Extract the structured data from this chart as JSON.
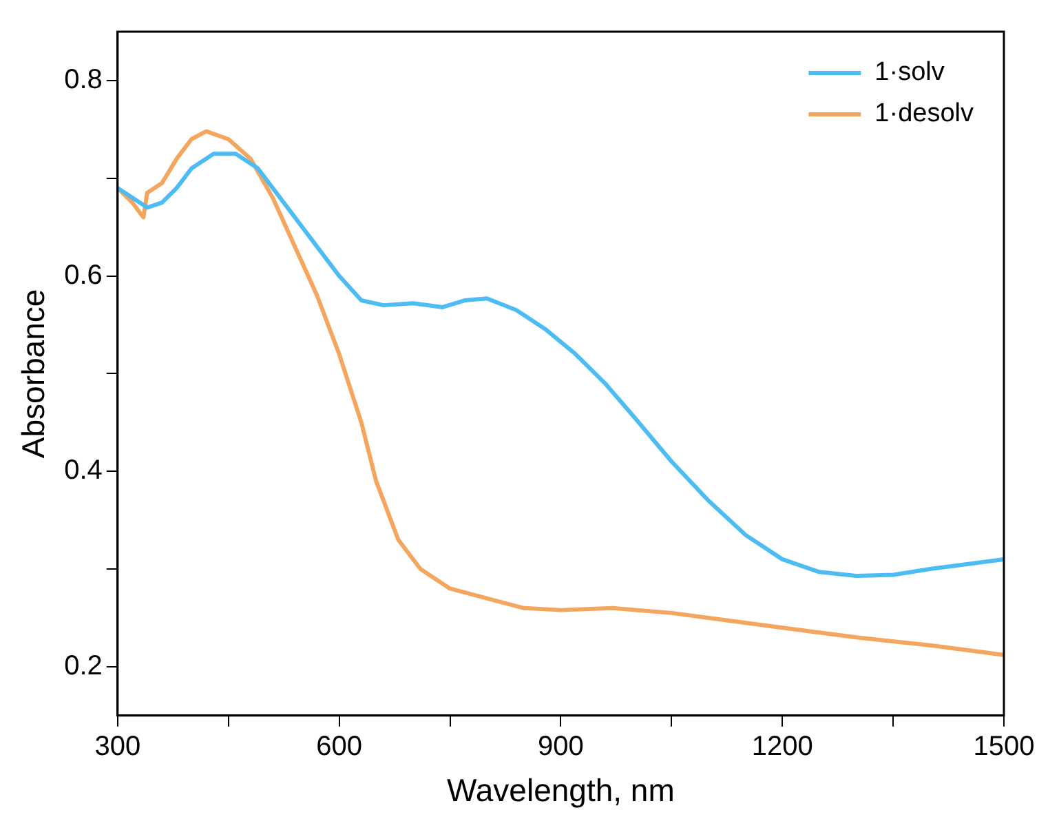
{
  "chart_data": {
    "type": "line",
    "xlabel": "Wavelength, nm",
    "ylabel": "Absorbance",
    "xlim": [
      300,
      1500
    ],
    "xticks": [
      300,
      {
        "value": 450,
        "label": null
      },
      600,
      {
        "value": 750,
        "label": null
      },
      900,
      {
        "value": 1050,
        "label": null
      },
      1200,
      {
        "value": 1350,
        "label": null
      },
      1500
    ],
    "ylim": [
      0.15,
      0.85
    ],
    "yticks": [
      0.2,
      {
        "value": 0.3,
        "label": null
      },
      0.4,
      {
        "value": 0.5,
        "label": null
      },
      0.6,
      {
        "value": 0.7,
        "label": null
      },
      0.8
    ],
    "grid": false,
    "legend": "top right",
    "marker": "none",
    "line_style": "solid",
    "series": [
      {
        "name": "1·solv",
        "color": "#4dbcf2",
        "x": [
          300,
          320,
          340,
          360,
          380,
          400,
          430,
          460,
          490,
          520,
          560,
          600,
          630,
          660,
          700,
          740,
          770,
          800,
          840,
          880,
          920,
          960,
          1000,
          1050,
          1100,
          1150,
          1200,
          1250,
          1300,
          1350,
          1400,
          1450,
          1500
        ],
        "values": [
          0.69,
          0.68,
          0.67,
          0.675,
          0.69,
          0.71,
          0.725,
          0.725,
          0.71,
          0.68,
          0.64,
          0.6,
          0.575,
          0.57,
          0.572,
          0.568,
          0.575,
          0.577,
          0.565,
          0.545,
          0.52,
          0.49,
          0.455,
          0.41,
          0.37,
          0.335,
          0.31,
          0.297,
          0.293,
          0.294,
          0.3,
          0.305,
          0.31
        ]
      },
      {
        "name": "1·desolv",
        "color": "#f4a55e",
        "x": [
          300,
          320,
          335,
          340,
          360,
          380,
          400,
          420,
          450,
          480,
          510,
          540,
          570,
          600,
          630,
          650,
          680,
          710,
          750,
          800,
          850,
          900,
          970,
          1050,
          1100,
          1200,
          1300,
          1400,
          1500
        ],
        "values": [
          0.69,
          0.675,
          0.66,
          0.685,
          0.695,
          0.72,
          0.74,
          0.748,
          0.74,
          0.72,
          0.68,
          0.63,
          0.58,
          0.52,
          0.45,
          0.39,
          0.33,
          0.3,
          0.28,
          0.27,
          0.26,
          0.258,
          0.26,
          0.255,
          0.25,
          0.24,
          0.23,
          0.222,
          0.212
        ]
      }
    ]
  }
}
